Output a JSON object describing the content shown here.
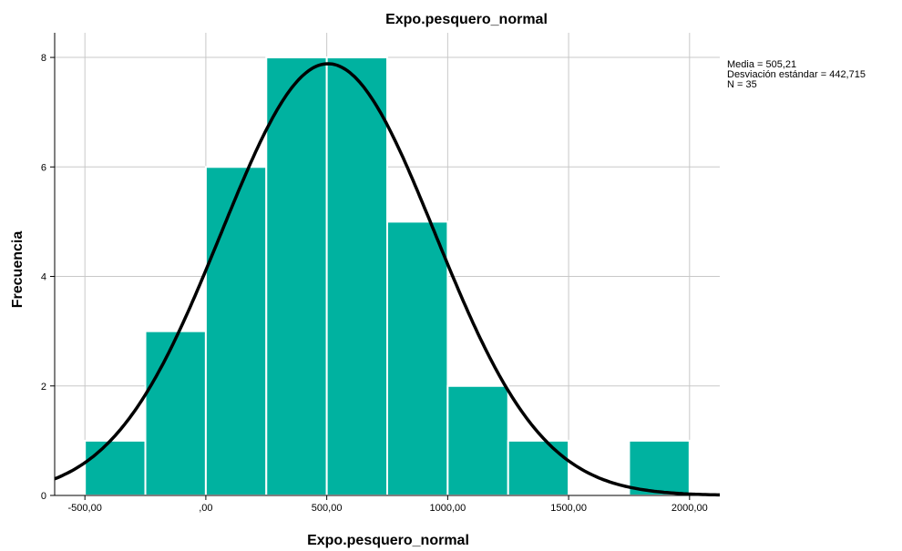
{
  "chart_data": {
    "type": "bar",
    "title": "Expo.pesquero_normal",
    "xlabel": "Expo.pesquero_normal",
    "ylabel": "Frecuencia",
    "xlim": [
      -625,
      2125
    ],
    "ylim": [
      0,
      8.45
    ],
    "x_ticks": [
      {
        "value": -500,
        "label": "-500,00"
      },
      {
        "value": 0,
        "label": ",00"
      },
      {
        "value": 500,
        "label": "500,00"
      },
      {
        "value": 1000,
        "label": "1000,00"
      },
      {
        "value": 1500,
        "label": "1500,00"
      },
      {
        "value": 2000,
        "label": "2000,00"
      }
    ],
    "y_ticks": [
      {
        "value": 0,
        "label": "0"
      },
      {
        "value": 2,
        "label": "2"
      },
      {
        "value": 4,
        "label": "4"
      },
      {
        "value": 6,
        "label": "6"
      },
      {
        "value": 8,
        "label": "8"
      }
    ],
    "bin_width": 250,
    "bins": [
      {
        "start": -500,
        "end": -250,
        "count": 1
      },
      {
        "start": -250,
        "end": 0,
        "count": 3
      },
      {
        "start": 0,
        "end": 250,
        "count": 6
      },
      {
        "start": 250,
        "end": 500,
        "count": 8
      },
      {
        "start": 500,
        "end": 750,
        "count": 8
      },
      {
        "start": 750,
        "end": 1000,
        "count": 5
      },
      {
        "start": 1000,
        "end": 1250,
        "count": 2
      },
      {
        "start": 1250,
        "end": 1500,
        "count": 1
      },
      {
        "start": 1500,
        "end": 1750,
        "count": 0
      },
      {
        "start": 1750,
        "end": 2000,
        "count": 1
      }
    ],
    "normal_curve": {
      "mean": 505.21,
      "sd": 442.715,
      "n": 35
    },
    "stats_lines": [
      "Media = 505,21",
      "Desviación estándar = 442,715",
      "N = 35"
    ],
    "grid": true,
    "colors": {
      "bar_fill": "#00B2A0",
      "bar_edge": "#ffffff",
      "curve": "#000000",
      "grid": "#c8c8c8",
      "axis": "#000000"
    }
  }
}
